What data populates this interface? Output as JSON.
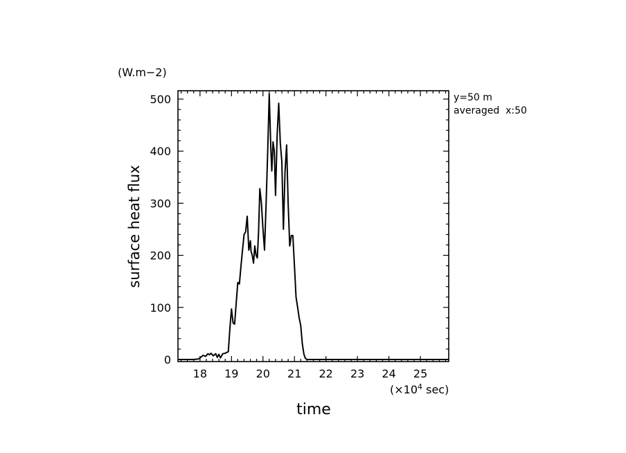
{
  "chart_data": {
    "type": "line",
    "ylabel": "surface heat flux",
    "yunit": "(W.m−2)",
    "xlabel": "time",
    "xunit_prefix": "(×10",
    "xunit_exp": "4",
    "xunit_suffix": " sec)",
    "annotation_lines": [
      "y=50 m",
      "averaged  x:50"
    ],
    "xlim": [
      17.3,
      25.9
    ],
    "ylim": [
      -4,
      516
    ],
    "xticks": [
      18,
      19,
      20,
      21,
      22,
      23,
      24,
      25
    ],
    "yticks": [
      0,
      100,
      200,
      300,
      400,
      500
    ],
    "grid": false,
    "series": [
      {
        "x": [
          17.3,
          17.8,
          17.95,
          18.02,
          18.1,
          18.18,
          18.25,
          18.3,
          18.35,
          18.42,
          18.5,
          18.55,
          18.6,
          18.65,
          18.72,
          18.8,
          18.9,
          18.95,
          19.0,
          19.05,
          19.1,
          19.15,
          19.2,
          19.25,
          19.3,
          19.35,
          19.4,
          19.45,
          19.5,
          19.55,
          19.6,
          19.62,
          19.66,
          19.7,
          19.74,
          19.78,
          19.82,
          19.86,
          19.9,
          19.95,
          20.0,
          20.05,
          20.1,
          20.15,
          20.2,
          20.25,
          20.28,
          20.32,
          20.36,
          20.4,
          20.45,
          20.5,
          20.55,
          20.6,
          20.65,
          20.7,
          20.75,
          20.8,
          20.85,
          20.9,
          20.95,
          21.0,
          21.05,
          21.1,
          21.15,
          21.2,
          21.25,
          21.3,
          21.35,
          21.4,
          21.5,
          22.0,
          23.0,
          24.0,
          25.0,
          25.9
        ],
        "y": [
          0,
          0,
          1,
          4,
          8,
          6,
          11,
          9,
          12,
          7,
          11,
          4,
          10,
          3,
          11,
          12,
          15,
          60,
          97,
          70,
          68,
          108,
          148,
          145,
          178,
          210,
          240,
          245,
          275,
          210,
          228,
          208,
          200,
          185,
          218,
          200,
          195,
          245,
          328,
          300,
          250,
          210,
          300,
          400,
          510,
          405,
          362,
          418,
          400,
          315,
          430,
          492,
          415,
          380,
          250,
          360,
          412,
          300,
          218,
          238,
          238,
          180,
          120,
          100,
          80,
          65,
          30,
          10,
          2,
          0,
          0,
          0,
          0,
          0,
          0,
          0
        ]
      }
    ]
  }
}
